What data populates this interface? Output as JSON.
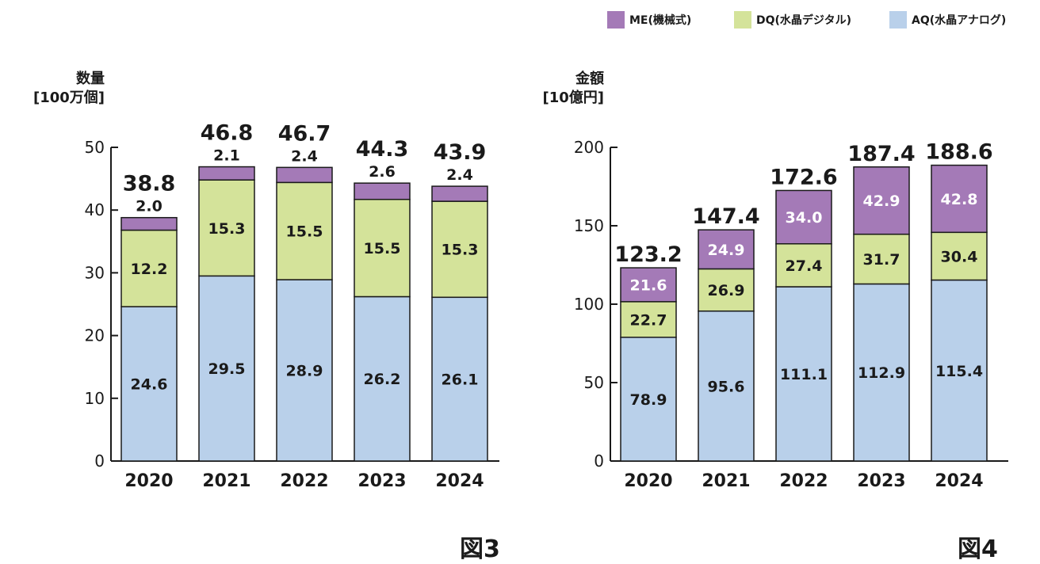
{
  "colors": {
    "ME": "#a47ab7",
    "DQ": "#d4e39a",
    "AQ": "#b9d0ea",
    "axis": "#1a1a1a"
  },
  "legend": [
    {
      "key": "ME",
      "label": "ME(機械式)"
    },
    {
      "key": "DQ",
      "label": "DQ(水晶デジタル)"
    },
    {
      "key": "AQ",
      "label": "AQ(水晶アナログ)"
    }
  ],
  "chart_data": [
    {
      "type": "bar",
      "stacked": true,
      "figure_label": "図3",
      "ylabel_line1": "数量",
      "ylabel_line2": "[100万個]",
      "ylim": [
        0,
        50
      ],
      "yticks": [
        0,
        10,
        20,
        30,
        40,
        50
      ],
      "categories": [
        "2020",
        "2021",
        "2022",
        "2023",
        "2024"
      ],
      "totals": [
        "38.8",
        "46.8",
        "46.7",
        "44.3",
        "43.9"
      ],
      "series": [
        {
          "key": "AQ",
          "name": "AQ(水晶アナログ)",
          "values": [
            24.6,
            29.5,
            28.9,
            26.2,
            26.1
          ]
        },
        {
          "key": "DQ",
          "name": "DQ(水晶デジタル)",
          "values": [
            12.2,
            15.3,
            15.5,
            15.5,
            15.3
          ]
        },
        {
          "key": "ME",
          "name": "ME(機械式)",
          "values": [
            2.0,
            2.1,
            2.4,
            2.6,
            2.4
          ]
        }
      ]
    },
    {
      "type": "bar",
      "stacked": true,
      "figure_label": "図4",
      "ylabel_line1": "金額",
      "ylabel_line2": "[10億円]",
      "ylim": [
        0,
        200
      ],
      "yticks": [
        0,
        50,
        100,
        150,
        200
      ],
      "categories": [
        "2020",
        "2021",
        "2022",
        "2023",
        "2024"
      ],
      "totals": [
        "123.2",
        "147.4",
        "172.6",
        "187.4",
        "188.6"
      ],
      "series": [
        {
          "key": "AQ",
          "name": "AQ(水晶アナログ)",
          "values": [
            78.9,
            95.6,
            111.1,
            112.9,
            115.4
          ]
        },
        {
          "key": "DQ",
          "name": "DQ(水晶デジタル)",
          "values": [
            22.7,
            26.9,
            27.4,
            31.7,
            30.4
          ]
        },
        {
          "key": "ME",
          "name": "ME(機械式)",
          "values": [
            21.6,
            24.9,
            34.0,
            42.9,
            42.8
          ]
        }
      ]
    }
  ]
}
